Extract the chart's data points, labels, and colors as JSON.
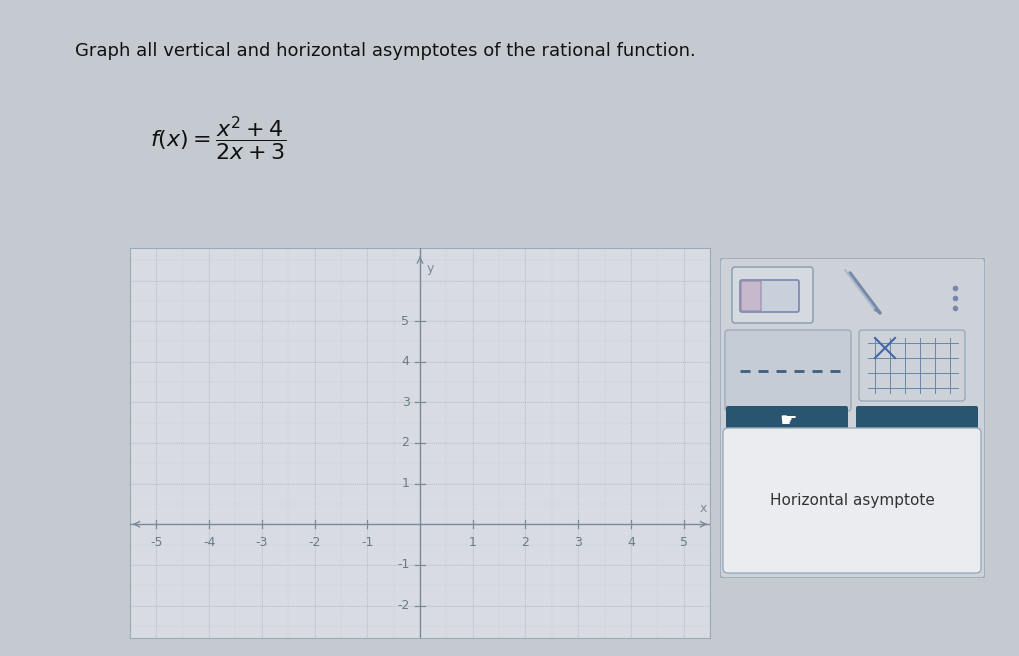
{
  "title": "Graph all vertical and horizontal asymptotes of the rational function.",
  "bg_color": "#c5cad1",
  "graph_bg_color": "#d8dce2",
  "grid_color_fine": "#b8bfca",
  "grid_color_major": "#a8b0be",
  "axis_color": "#7a8a9a",
  "tick_color": "#6a7a8a",
  "xlim": [
    -5.5,
    5.5
  ],
  "ylim": [
    -2.8,
    6.8
  ],
  "xticks": [
    -5,
    -4,
    -3,
    -2,
    -1,
    1,
    2,
    3,
    4,
    5
  ],
  "yticks": [
    -2,
    -1,
    1,
    2,
    3,
    4,
    5
  ],
  "title_fontsize": 13,
  "formula_fontsize": 16,
  "tick_fontsize": 9,
  "panel_bg": "#cdd2d9",
  "panel_border": "#9aaabb",
  "asymptote_label": "Horizontal asymptote",
  "toolbar_bg": "#cdd2d9",
  "dark_blue": "#2a5570",
  "label_box_color": "#e8ecf0"
}
